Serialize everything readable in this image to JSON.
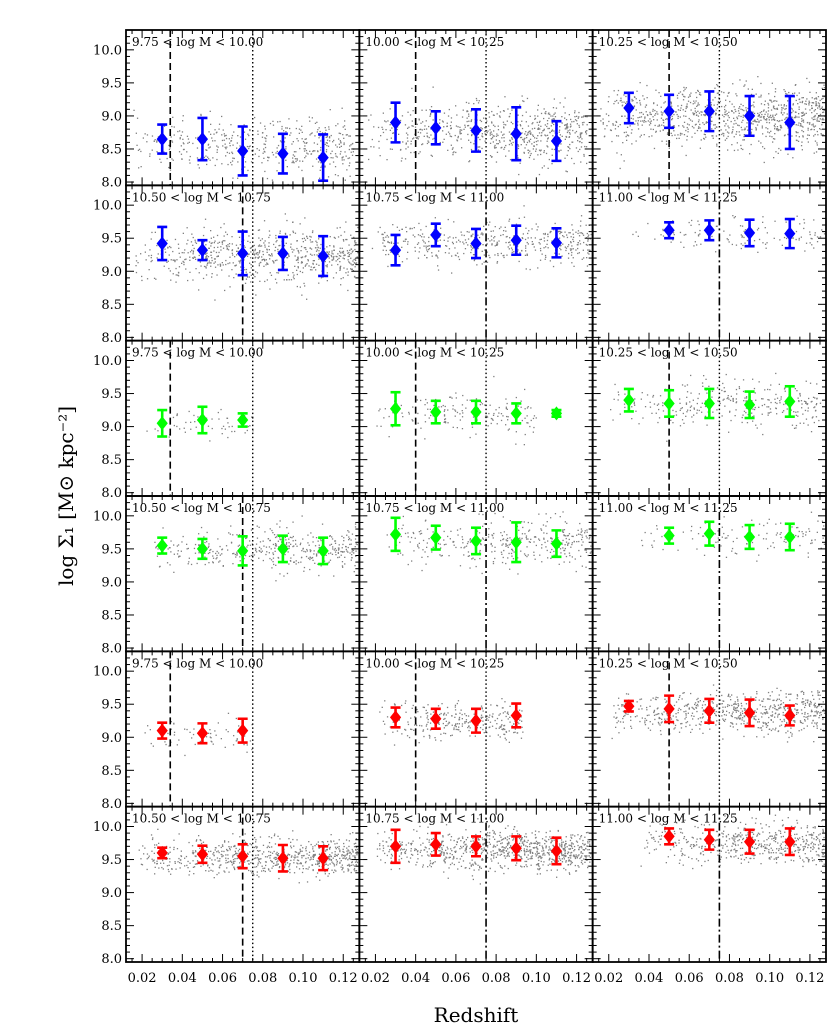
{
  "chart_data": {
    "type": "scatter",
    "xlabel": "Redshift",
    "ylabel": "log Σ₁ [M⊙ kpc⁻²]",
    "xlim": [
      0.012,
      0.128
    ],
    "ylim": [
      7.95,
      10.3
    ],
    "xticks": [
      0.02,
      0.04,
      0.06,
      0.08,
      0.1,
      0.12
    ],
    "xtick_labels": [
      "0.02",
      "0.04",
      "0.06",
      "0.08",
      "0.10",
      "0.12"
    ],
    "yticks": [
      8.0,
      8.5,
      9.0,
      9.5,
      10.0
    ],
    "ytick_labels": [
      "8.0",
      "8.5",
      "9.0",
      "9.5",
      "10.0"
    ],
    "grid": false,
    "background_points_color": "#808080",
    "panels": [
      {
        "label": "9.75 < log M < 10.00",
        "color": "#0000ff",
        "x": [
          0.03,
          0.05,
          0.07,
          0.09,
          0.11
        ],
        "y": [
          8.65,
          8.65,
          8.47,
          8.43,
          8.37
        ],
        "err": [
          0.22,
          0.32,
          0.37,
          0.3,
          0.35
        ],
        "dashed": 0.034,
        "dotted": 0.075,
        "cloud": {
          "xmin": 0.015,
          "xmax": 0.125,
          "yc": 8.55,
          "spread": 0.2,
          "n": 450
        }
      },
      {
        "label": "10.00 < log M < 10.25",
        "color": "#0000ff",
        "x": [
          0.03,
          0.05,
          0.07,
          0.09,
          0.11
        ],
        "y": [
          8.9,
          8.82,
          8.78,
          8.73,
          8.62
        ],
        "err": [
          0.3,
          0.25,
          0.32,
          0.4,
          0.3
        ],
        "dashed": 0.04,
        "dotted": 0.075,
        "cloud": {
          "xmin": 0.015,
          "xmax": 0.125,
          "yc": 8.75,
          "spread": 0.22,
          "n": 650
        }
      },
      {
        "label": "10.25 < log M < 10.50",
        "color": "#0000ff",
        "x": [
          0.03,
          0.05,
          0.07,
          0.09,
          0.11
        ],
        "y": [
          9.12,
          9.07,
          9.07,
          9.0,
          8.9
        ],
        "err": [
          0.23,
          0.25,
          0.3,
          0.3,
          0.4
        ],
        "dashed": 0.05,
        "dotted": 0.075,
        "cloud": {
          "xmin": 0.015,
          "xmax": 0.127,
          "yc": 8.98,
          "spread": 0.23,
          "n": 900
        }
      },
      {
        "label": "10.50 < log M < 10.75",
        "color": "#0000ff",
        "x": [
          0.03,
          0.05,
          0.07,
          0.09,
          0.11
        ],
        "y": [
          9.42,
          9.32,
          9.27,
          9.27,
          9.23
        ],
        "err": [
          0.25,
          0.15,
          0.33,
          0.25,
          0.3
        ],
        "dashed": 0.07,
        "dotted": 0.075,
        "cloud": {
          "xmin": 0.015,
          "xmax": 0.127,
          "yc": 9.25,
          "spread": 0.2,
          "n": 700
        }
      },
      {
        "label": "10.75 < log M < 11.00",
        "color": "#0000ff",
        "x": [
          0.03,
          0.05,
          0.07,
          0.09,
          0.11
        ],
        "y": [
          9.32,
          9.55,
          9.42,
          9.47,
          9.43
        ],
        "err": [
          0.23,
          0.17,
          0.22,
          0.22,
          0.22
        ],
        "dashed": 0.075,
        "dotted": 0.075,
        "cloud": {
          "xmin": 0.018,
          "xmax": 0.127,
          "yc": 9.43,
          "spread": 0.16,
          "n": 450
        }
      },
      {
        "label": "11.00 < log M < 11.25",
        "color": "#0000ff",
        "x": [
          0.05,
          0.07,
          0.09,
          0.11
        ],
        "y": [
          9.62,
          9.62,
          9.58,
          9.57
        ],
        "err": [
          0.12,
          0.15,
          0.2,
          0.22
        ],
        "dashed": 0.075,
        "dotted": 0.075,
        "cloud": {
          "xmin": 0.03,
          "xmax": 0.127,
          "yc": 9.55,
          "spread": 0.13,
          "n": 120
        }
      },
      {
        "label": "9.75 < log M < 10.00",
        "color": "#00ff00",
        "x": [
          0.03,
          0.05,
          0.07
        ],
        "y": [
          9.05,
          9.1,
          9.1
        ],
        "err": [
          0.2,
          0.2,
          0.1
        ],
        "dashed": 0.034,
        "dotted": 0.075,
        "cloud": {
          "xmin": 0.02,
          "xmax": 0.075,
          "yc": 9.05,
          "spread": 0.15,
          "n": 60
        }
      },
      {
        "label": "10.00 < log M < 10.25",
        "color": "#00ff00",
        "x": [
          0.03,
          0.05,
          0.07,
          0.09,
          0.11
        ],
        "y": [
          9.27,
          9.22,
          9.22,
          9.2,
          9.2
        ],
        "err": [
          0.25,
          0.17,
          0.17,
          0.15,
          0.05
        ],
        "dashed": 0.04,
        "dotted": 0.075,
        "cloud": {
          "xmin": 0.02,
          "xmax": 0.1,
          "yc": 9.2,
          "spread": 0.15,
          "n": 170
        }
      },
      {
        "label": "10.25 < log M < 10.50",
        "color": "#00ff00",
        "x": [
          0.03,
          0.05,
          0.07,
          0.09,
          0.11
        ],
        "y": [
          9.4,
          9.35,
          9.35,
          9.33,
          9.38
        ],
        "err": [
          0.17,
          0.2,
          0.22,
          0.2,
          0.23
        ],
        "dashed": 0.05,
        "dotted": 0.075,
        "cloud": {
          "xmin": 0.02,
          "xmax": 0.125,
          "yc": 9.35,
          "spread": 0.18,
          "n": 300
        }
      },
      {
        "label": "10.50 < log M < 10.75",
        "color": "#00ff00",
        "x": [
          0.03,
          0.05,
          0.07,
          0.09,
          0.11
        ],
        "y": [
          9.55,
          9.5,
          9.47,
          9.5,
          9.47
        ],
        "err": [
          0.12,
          0.15,
          0.22,
          0.2,
          0.2
        ],
        "dashed": 0.07,
        "dotted": 0.075,
        "cloud": {
          "xmin": 0.025,
          "xmax": 0.127,
          "yc": 9.5,
          "spread": 0.17,
          "n": 400
        }
      },
      {
        "label": "10.75 < log M < 11.00",
        "color": "#00ff00",
        "x": [
          0.03,
          0.05,
          0.07,
          0.09,
          0.11
        ],
        "y": [
          9.72,
          9.67,
          9.62,
          9.6,
          9.58
        ],
        "err": [
          0.25,
          0.18,
          0.2,
          0.3,
          0.2
        ],
        "dashed": 0.075,
        "dotted": 0.075,
        "cloud": {
          "xmin": 0.025,
          "xmax": 0.127,
          "yc": 9.6,
          "spread": 0.17,
          "n": 350
        }
      },
      {
        "label": "11.00 < log M < 11.25",
        "color": "#00ff00",
        "x": [
          0.05,
          0.07,
          0.09,
          0.11
        ],
        "y": [
          9.7,
          9.73,
          9.68,
          9.68
        ],
        "err": [
          0.12,
          0.18,
          0.18,
          0.2
        ],
        "dashed": 0.075,
        "dotted": 0.075,
        "cloud": {
          "xmin": 0.035,
          "xmax": 0.127,
          "yc": 9.68,
          "spread": 0.14,
          "n": 120
        }
      },
      {
        "label": "9.75 < log M < 10.00",
        "color": "#ff0000",
        "x": [
          0.03,
          0.05,
          0.07
        ],
        "y": [
          9.1,
          9.06,
          9.1
        ],
        "err": [
          0.12,
          0.15,
          0.18
        ],
        "dashed": 0.034,
        "dotted": 0.075,
        "cloud": {
          "xmin": 0.02,
          "xmax": 0.075,
          "yc": 9.05,
          "spread": 0.13,
          "n": 70
        }
      },
      {
        "label": "10.00 < log M < 10.25",
        "color": "#ff0000",
        "x": [
          0.03,
          0.05,
          0.07,
          0.09
        ],
        "y": [
          9.3,
          9.28,
          9.25,
          9.33
        ],
        "err": [
          0.15,
          0.15,
          0.18,
          0.18
        ],
        "dashed": 0.04,
        "dotted": 0.075,
        "cloud": {
          "xmin": 0.02,
          "xmax": 0.093,
          "yc": 9.25,
          "spread": 0.14,
          "n": 280
        }
      },
      {
        "label": "10.25 < log M < 10.50",
        "color": "#ff0000",
        "x": [
          0.03,
          0.05,
          0.07,
          0.09,
          0.11
        ],
        "y": [
          9.47,
          9.43,
          9.4,
          9.37,
          9.33
        ],
        "err": [
          0.08,
          0.2,
          0.18,
          0.2,
          0.15
        ],
        "dashed": 0.05,
        "dotted": 0.075,
        "cloud": {
          "xmin": 0.018,
          "xmax": 0.127,
          "yc": 9.38,
          "spread": 0.15,
          "n": 650
        }
      },
      {
        "label": "10.50 < log M < 10.75",
        "color": "#ff0000",
        "x": [
          0.03,
          0.05,
          0.07,
          0.09,
          0.11
        ],
        "y": [
          9.6,
          9.58,
          9.55,
          9.52,
          9.52
        ],
        "err": [
          0.08,
          0.13,
          0.18,
          0.2,
          0.18
        ],
        "dashed": 0.07,
        "dotted": 0.075,
        "cloud": {
          "xmin": 0.018,
          "xmax": 0.127,
          "yc": 9.55,
          "spread": 0.14,
          "n": 700
        }
      },
      {
        "label": "10.75 < log M < 11.00",
        "color": "#ff0000",
        "x": [
          0.03,
          0.05,
          0.07,
          0.09,
          0.11
        ],
        "y": [
          9.7,
          9.73,
          9.7,
          9.67,
          9.63
        ],
        "err": [
          0.25,
          0.17,
          0.15,
          0.18,
          0.2
        ],
        "dashed": 0.075,
        "dotted": 0.075,
        "cloud": {
          "xmin": 0.02,
          "xmax": 0.127,
          "yc": 9.65,
          "spread": 0.15,
          "n": 850
        }
      },
      {
        "label": "11.00 < log M < 11.25",
        "color": "#ff0000",
        "x": [
          0.05,
          0.07,
          0.09,
          0.11
        ],
        "y": [
          9.85,
          9.8,
          9.77,
          9.77
        ],
        "err": [
          0.12,
          0.15,
          0.18,
          0.2
        ],
        "dashed": 0.075,
        "dotted": 0.075,
        "cloud": {
          "xmin": 0.035,
          "xmax": 0.127,
          "yc": 9.75,
          "spread": 0.15,
          "n": 500
        }
      }
    ]
  }
}
